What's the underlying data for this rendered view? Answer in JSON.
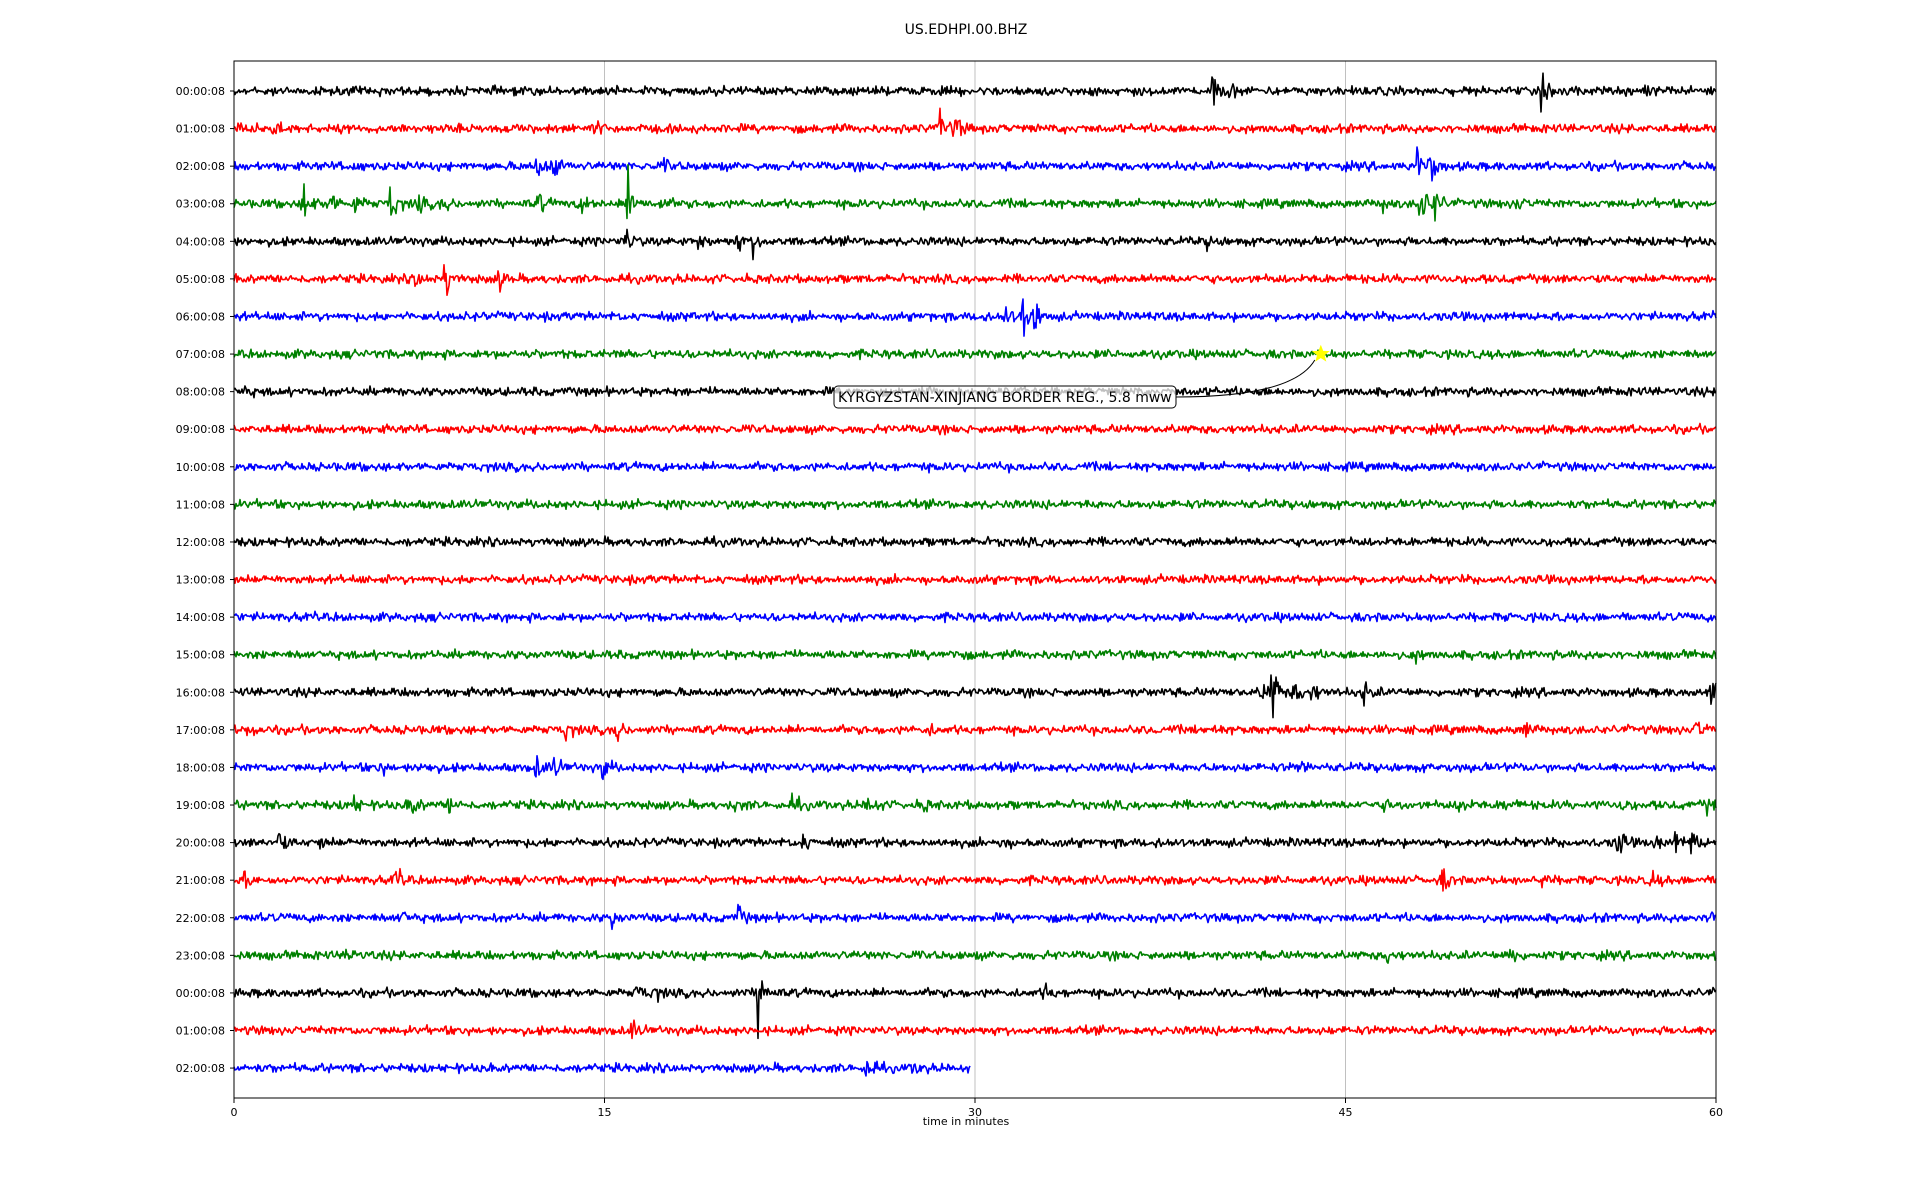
{
  "chart_data": {
    "type": "line",
    "title": "US.EDHPI.00.BHZ",
    "xlabel": "time in minutes",
    "xlim": [
      0,
      60
    ],
    "xticks": [
      0,
      15,
      30,
      45,
      60
    ],
    "grid": "vertical",
    "colors": [
      "#000000",
      "#ff0000",
      "#0000ff",
      "#008000"
    ],
    "rows": [
      {
        "label": "00:00:08",
        "duration_min": 60,
        "events": [
          {
            "t": 39.6,
            "amp": 2.0
          },
          {
            "t": 40.3,
            "amp": 0.9
          },
          {
            "t": 52.9,
            "amp": 1.8
          },
          {
            "t": 57.0,
            "amp": 0.7
          }
        ]
      },
      {
        "label": "01:00:08",
        "duration_min": 60,
        "events": [
          {
            "t": 0.2,
            "amp": 1.0
          },
          {
            "t": 1.6,
            "amp": 1.0
          },
          {
            "t": 14.6,
            "amp": 0.9
          },
          {
            "t": 28.6,
            "amp": 2.4
          },
          {
            "t": 29.2,
            "amp": 1.6
          }
        ]
      },
      {
        "label": "02:00:08",
        "duration_min": 60,
        "events": [
          {
            "t": 4.6,
            "amp": 0.6
          },
          {
            "t": 12.2,
            "amp": 2.0
          },
          {
            "t": 12.9,
            "amp": 2.0
          },
          {
            "t": 17.4,
            "amp": 0.6
          },
          {
            "t": 47.9,
            "amp": 2.0
          },
          {
            "t": 48.4,
            "amp": 2.2
          }
        ]
      },
      {
        "label": "03:00:08",
        "duration_min": 60,
        "events": [
          {
            "t": 2.8,
            "amp": 2.8
          },
          {
            "t": 3.8,
            "amp": 2.2
          },
          {
            "t": 4.9,
            "amp": 1.2
          },
          {
            "t": 6.3,
            "amp": 2.4
          },
          {
            "t": 7.4,
            "amp": 1.2
          },
          {
            "t": 8.4,
            "amp": 1.0
          },
          {
            "t": 12.3,
            "amp": 1.2
          },
          {
            "t": 14.1,
            "amp": 1.2
          },
          {
            "t": 15.9,
            "amp": 4.0
          },
          {
            "t": 17.2,
            "amp": 1.0
          },
          {
            "t": 46.4,
            "amp": 1.0
          },
          {
            "t": 48.0,
            "amp": 3.5
          },
          {
            "t": 48.6,
            "amp": 2.0
          },
          {
            "t": 51.9,
            "amp": 0.8
          },
          {
            "t": 59.9,
            "amp": 0.8
          }
        ]
      },
      {
        "label": "04:00:08",
        "duration_min": 60,
        "events": [
          {
            "t": 15.8,
            "amp": 1.8
          },
          {
            "t": 18.8,
            "amp": 0.8
          },
          {
            "t": 20.3,
            "amp": 1.2
          },
          {
            "t": 21.0,
            "amp": 1.3
          },
          {
            "t": 39.4,
            "amp": 0.6
          }
        ]
      },
      {
        "label": "05:00:08",
        "duration_min": 60,
        "events": [
          {
            "t": 7.3,
            "amp": 1.0
          },
          {
            "t": 8.5,
            "amp": 2.4
          },
          {
            "t": 10.7,
            "amp": 1.2
          }
        ]
      },
      {
        "label": "06:00:08",
        "duration_min": 60,
        "events": [
          {
            "t": 30.3,
            "amp": 1.0
          },
          {
            "t": 31.2,
            "amp": 1.4
          },
          {
            "t": 31.9,
            "amp": 3.5
          },
          {
            "t": 32.4,
            "amp": 1.6
          }
        ]
      },
      {
        "label": "07:00:08",
        "duration_min": 60,
        "events": []
      },
      {
        "label": "08:00:08",
        "duration_min": 60,
        "events": [
          {
            "t": 0.3,
            "amp": 0.6
          }
        ]
      },
      {
        "label": "09:00:08",
        "duration_min": 60,
        "events": []
      },
      {
        "label": "10:00:08",
        "duration_min": 60,
        "events": []
      },
      {
        "label": "11:00:08",
        "duration_min": 60,
        "events": []
      },
      {
        "label": "12:00:08",
        "duration_min": 60,
        "events": []
      },
      {
        "label": "13:00:08",
        "duration_min": 60,
        "events": []
      },
      {
        "label": "14:00:08",
        "duration_min": 60,
        "events": []
      },
      {
        "label": "15:00:08",
        "duration_min": 60,
        "events": [
          {
            "t": 29.0,
            "amp": 0.7
          },
          {
            "t": 47.7,
            "amp": 0.9
          }
        ]
      },
      {
        "label": "16:00:08",
        "duration_min": 60,
        "events": [
          {
            "t": 41.6,
            "amp": 1.5
          },
          {
            "t": 42.0,
            "amp": 4.0
          },
          {
            "t": 42.9,
            "amp": 1.6
          },
          {
            "t": 43.6,
            "amp": 1.3
          },
          {
            "t": 45.7,
            "amp": 1.6
          },
          {
            "t": 59.8,
            "amp": 2.0
          }
        ]
      },
      {
        "label": "17:00:08",
        "duration_min": 60,
        "events": [
          {
            "t": 0.5,
            "amp": 0.8
          },
          {
            "t": 13.4,
            "amp": 1.0
          },
          {
            "t": 15.4,
            "amp": 1.6
          },
          {
            "t": 28.1,
            "amp": 0.6
          },
          {
            "t": 39.3,
            "amp": 1.0
          },
          {
            "t": 52.2,
            "amp": 1.3
          },
          {
            "t": 59.2,
            "amp": 1.3
          }
        ]
      },
      {
        "label": "18:00:08",
        "duration_min": 60,
        "events": [
          {
            "t": 5.9,
            "amp": 0.8
          },
          {
            "t": 7.6,
            "amp": 1.0
          },
          {
            "t": 12.2,
            "amp": 1.3
          },
          {
            "t": 12.9,
            "amp": 1.6
          },
          {
            "t": 14.9,
            "amp": 1.4
          },
          {
            "t": 43.1,
            "amp": 0.8
          }
        ]
      },
      {
        "label": "19:00:08",
        "duration_min": 60,
        "events": [
          {
            "t": 4.7,
            "amp": 1.8
          },
          {
            "t": 7.1,
            "amp": 1.8
          },
          {
            "t": 8.7,
            "amp": 1.0
          },
          {
            "t": 20.3,
            "amp": 0.8
          },
          {
            "t": 22.6,
            "amp": 0.9
          },
          {
            "t": 25.6,
            "amp": 1.5
          },
          {
            "t": 27.8,
            "amp": 0.9
          },
          {
            "t": 46.6,
            "amp": 0.8
          },
          {
            "t": 49.6,
            "amp": 1.2
          },
          {
            "t": 51.4,
            "amp": 0.8
          },
          {
            "t": 56.1,
            "amp": 0.7
          },
          {
            "t": 59.6,
            "amp": 0.9
          }
        ]
      },
      {
        "label": "20:00:08",
        "duration_min": 60,
        "events": [
          {
            "t": 1.8,
            "amp": 1.4
          },
          {
            "t": 3.5,
            "amp": 0.6
          },
          {
            "t": 23.0,
            "amp": 1.0
          },
          {
            "t": 31.0,
            "amp": 0.7
          },
          {
            "t": 37.3,
            "amp": 0.7
          },
          {
            "t": 56.0,
            "amp": 2.0
          },
          {
            "t": 57.6,
            "amp": 0.8
          },
          {
            "t": 58.3,
            "amp": 1.2
          },
          {
            "t": 59.0,
            "amp": 1.8
          }
        ]
      },
      {
        "label": "21:00:08",
        "duration_min": 60,
        "events": [
          {
            "t": 0.4,
            "amp": 0.7
          },
          {
            "t": 6.5,
            "amp": 1.4
          },
          {
            "t": 48.9,
            "amp": 1.4
          },
          {
            "t": 52.9,
            "amp": 0.9
          },
          {
            "t": 57.4,
            "amp": 1.0
          }
        ]
      },
      {
        "label": "22:00:08",
        "duration_min": 60,
        "events": [
          {
            "t": 6.7,
            "amp": 1.0
          },
          {
            "t": 15.3,
            "amp": 1.0
          },
          {
            "t": 20.4,
            "amp": 1.3
          },
          {
            "t": 59.8,
            "amp": 1.5
          }
        ]
      },
      {
        "label": "23:00:08",
        "duration_min": 60,
        "events": [
          {
            "t": 4.6,
            "amp": 1.2
          },
          {
            "t": 46.7,
            "amp": 0.8
          },
          {
            "t": 51.6,
            "amp": 1.8
          }
        ]
      },
      {
        "label": "00:00:08",
        "duration_min": 60,
        "events": [
          {
            "t": 16.3,
            "amp": 1.0
          },
          {
            "t": 17.0,
            "amp": 0.8
          },
          {
            "t": 21.2,
            "amp": 4.5
          },
          {
            "t": 32.8,
            "amp": 1.0
          }
        ]
      },
      {
        "label": "01:00:08",
        "duration_min": 60,
        "events": [
          {
            "t": 16.1,
            "amp": 1.2
          }
        ]
      },
      {
        "label": "02:00:08",
        "duration_min": 29.8,
        "events": [
          {
            "t": 25.6,
            "amp": 1.7
          },
          {
            "t": 27.5,
            "amp": 0.8
          }
        ]
      }
    ],
    "annotations": [
      {
        "text": "KYRGYZSTAN-XINJIANG BORDER REG., 5.8 mww",
        "row": 7,
        "t": 44.0,
        "marker": "star",
        "marker_color": "#ffff00"
      }
    ]
  }
}
